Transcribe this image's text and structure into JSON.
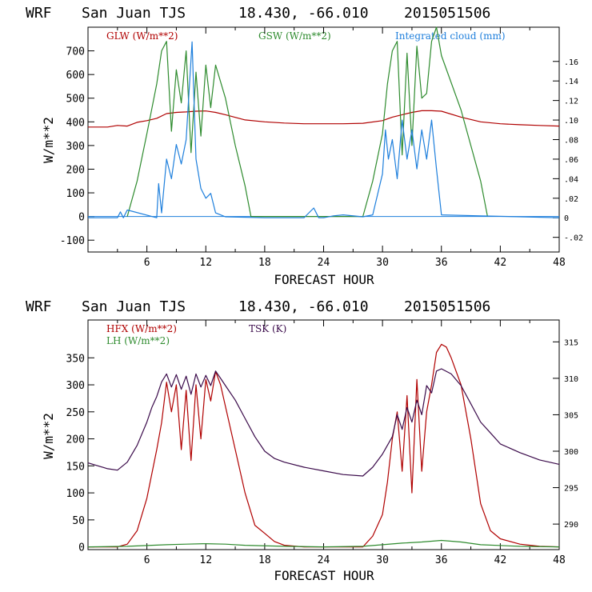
{
  "colors": {
    "red": "#b00000",
    "green": "#2e8b2e",
    "blue": "#1e7fdc",
    "purple": "#3a0a4a",
    "frame": "#000000"
  },
  "charts": [
    {
      "title_parts": [
        "WRF",
        "San Juan TJS",
        "18.430, -66.010",
        "2015051506"
      ],
      "legend": [
        {
          "label": "GLW (W/m**2)",
          "color": "#b00000"
        },
        {
          "label": "GSW (W/m**2)",
          "color": "#2e8b2e"
        },
        {
          "label": "Integrated cloud (mm)",
          "color": "#1e7fdc"
        }
      ],
      "xlabel": "FORECAST HOUR",
      "ylabel": "W/m**2",
      "xticks": [
        "6",
        "12",
        "18",
        "24",
        "30",
        "36",
        "42",
        "48"
      ],
      "yticks": [
        "-100",
        "0",
        "100",
        "200",
        "300",
        "400",
        "500",
        "600",
        "700"
      ],
      "rticks": [
        "-.02",
        "0",
        ".02",
        ".04",
        ".06",
        ".08",
        ".10",
        ".12",
        ".14",
        ".16"
      ]
    },
    {
      "title_parts": [
        "WRF",
        "San Juan TJS",
        "18.430, -66.010",
        "2015051506"
      ],
      "legend": [
        {
          "label": "HFX (W/m**2)",
          "color": "#b00000"
        },
        {
          "label": "LH  (W/m**2)",
          "color": "#2e8b2e"
        },
        {
          "label": "TSK (K)",
          "color": "#3a0a4a"
        }
      ],
      "xlabel": "FORECAST HOUR",
      "ylabel": "W/m**2",
      "xticks": [
        "6",
        "12",
        "18",
        "24",
        "30",
        "36",
        "42",
        "48"
      ],
      "yticks": [
        "0",
        "50",
        "100",
        "150",
        "200",
        "250",
        "300",
        "350"
      ],
      "rticks": [
        "290",
        "295",
        "300",
        "305",
        "310",
        "315"
      ]
    }
  ],
  "chart_data": [
    {
      "type": "line",
      "x_range": [
        0,
        48
      ],
      "y_range": [
        -150,
        800
      ],
      "y2_range": [
        -0.035,
        0.195
      ],
      "series": [
        {
          "name": "GLW (W/m**2)",
          "axis": "left",
          "color": "#b00000",
          "x": [
            0,
            2,
            3,
            4,
            5,
            6,
            7,
            8,
            9,
            10,
            11,
            12,
            13,
            14,
            16,
            18,
            20,
            22,
            24,
            26,
            28,
            30,
            31,
            32,
            33,
            34,
            35,
            36,
            38,
            40,
            42,
            44,
            46,
            48
          ],
          "y": [
            378,
            378,
            385,
            382,
            398,
            405,
            415,
            435,
            440,
            442,
            445,
            446,
            440,
            430,
            408,
            400,
            395,
            392,
            392,
            392,
            394,
            405,
            420,
            430,
            440,
            447,
            447,
            445,
            420,
            400,
            392,
            388,
            385,
            382
          ]
        },
        {
          "name": "GSW (W/m**2)",
          "axis": "left",
          "color": "#2e8b2e",
          "x": [
            4,
            5,
            6,
            7,
            7.5,
            8,
            8.5,
            9,
            9.5,
            10,
            10.5,
            11,
            11.5,
            12,
            12.5,
            13,
            14,
            15,
            16,
            16.6,
            28,
            29,
            30,
            30.5,
            31,
            31.5,
            32,
            32.5,
            33,
            33.5,
            34,
            34.5,
            35,
            35.5,
            36,
            38,
            40,
            40.7
          ],
          "y": [
            0,
            150,
            350,
            560,
            700,
            740,
            360,
            620,
            480,
            700,
            270,
            610,
            340,
            640,
            460,
            640,
            500,
            300,
            130,
            0,
            0,
            150,
            350,
            560,
            700,
            740,
            260,
            690,
            300,
            720,
            500,
            520,
            740,
            800,
            680,
            450,
            150,
            0
          ]
        },
        {
          "name": "Integrated cloud (mm)",
          "axis": "right",
          "color": "#1e7fdc",
          "x": [
            0,
            3,
            3.3,
            3.6,
            4,
            7,
            7.2,
            7.5,
            8,
            8.5,
            9,
            9.5,
            10,
            10.3,
            10.6,
            10.8,
            11,
            11.5,
            12,
            12.5,
            13,
            13.5,
            14,
            18,
            22,
            23,
            23.5,
            24,
            25,
            26,
            28,
            29,
            30,
            30.3,
            30.6,
            31,
            31.5,
            32,
            32.5,
            33,
            33.5,
            34,
            34.5,
            35,
            35.5,
            36,
            40,
            48
          ],
          "y": [
            0,
            0,
            0.006,
            0,
            0.008,
            0,
            0.035,
            0.005,
            0.06,
            0.04,
            0.075,
            0.055,
            0.08,
            0.13,
            0.18,
            0.12,
            0.06,
            0.03,
            0.02,
            0.025,
            0.005,
            0.003,
            0.001,
            0,
            0,
            0.01,
            0,
            0,
            0.002,
            0.003,
            0.001,
            0.003,
            0.045,
            0.09,
            0.06,
            0.08,
            0.04,
            0.1,
            0.06,
            0.09,
            0.05,
            0.09,
            0.06,
            0.1,
            0.05,
            0.003,
            0.002,
            0
          ]
        }
      ]
    },
    {
      "type": "line",
      "x_range": [
        0,
        48
      ],
      "y_range": [
        -5,
        420
      ],
      "y2_range": [
        286.5,
        318
      ],
      "series": [
        {
          "name": "HFX (W/m**2)",
          "axis": "left",
          "color": "#b00000",
          "x": [
            0,
            3,
            4,
            5,
            6,
            7,
            7.5,
            8,
            8.5,
            9,
            9.5,
            10,
            10.5,
            11,
            11.5,
            12,
            12.5,
            13,
            13.5,
            14,
            15,
            16,
            17,
            18,
            19,
            20,
            22,
            24,
            28,
            29,
            30,
            30.5,
            31,
            31.5,
            32,
            32.5,
            33,
            33.5,
            34,
            34.5,
            35,
            35.5,
            36,
            36.5,
            37,
            38,
            39,
            40,
            41,
            42,
            44,
            46,
            48
          ],
          "y": [
            0,
            0,
            5,
            30,
            90,
            180,
            230,
            305,
            250,
            300,
            180,
            290,
            160,
            300,
            200,
            310,
            270,
            325,
            300,
            260,
            180,
            100,
            40,
            25,
            10,
            3,
            0,
            0,
            0,
            20,
            60,
            120,
            200,
            250,
            140,
            280,
            100,
            310,
            140,
            250,
            300,
            360,
            375,
            370,
            350,
            300,
            200,
            80,
            30,
            15,
            5,
            1,
            0
          ]
        },
        {
          "name": "LH  (W/m**2)",
          "axis": "left",
          "color": "#2e8b2e",
          "x": [
            0,
            4,
            8,
            10,
            12,
            14,
            16,
            20,
            24,
            28,
            30,
            32,
            34,
            36,
            38,
            40,
            44,
            48
          ],
          "y": [
            0,
            1,
            4,
            5,
            6,
            5,
            3,
            1,
            0,
            1,
            4,
            7,
            9,
            12,
            9,
            4,
            1,
            0
          ]
        },
        {
          "name": "TSK (K)",
          "axis": "right",
          "color": "#3a0a4a",
          "x": [
            0,
            2,
            3,
            4,
            5,
            6,
            6.5,
            7,
            7.5,
            8,
            8.5,
            9,
            9.5,
            10,
            10.5,
            11,
            11.5,
            12,
            12.5,
            13,
            13.5,
            14,
            15,
            16,
            17,
            18,
            19,
            20,
            22,
            24,
            26,
            28,
            29,
            30,
            31,
            31.5,
            32,
            32.5,
            33,
            33.5,
            34,
            34.5,
            35,
            35.5,
            36,
            37,
            38,
            39,
            40,
            41,
            42,
            44,
            46,
            48
          ],
          "y": [
            298.4,
            297.6,
            297.4,
            298.5,
            300.8,
            304,
            306,
            307.5,
            309.5,
            310.6,
            308.8,
            310.5,
            308.5,
            310.3,
            307.8,
            310.6,
            308.8,
            310.4,
            309,
            311,
            310,
            309,
            307,
            304.5,
            302,
            300,
            299,
            298.5,
            297.8,
            297.3,
            296.8,
            296.6,
            297.8,
            299.6,
            302,
            305,
            303,
            306,
            304,
            307,
            305,
            309,
            308,
            311,
            311.3,
            310.6,
            309,
            306.5,
            304,
            302.5,
            301,
            299.8,
            298.8,
            298.2
          ]
        }
      ]
    }
  ]
}
